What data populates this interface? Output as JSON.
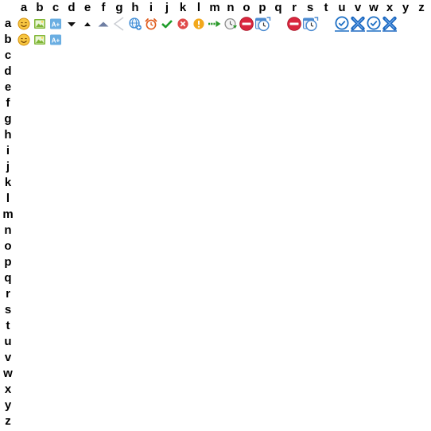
{
  "grid": {
    "column_labels": [
      "a",
      "b",
      "c",
      "d",
      "e",
      "f",
      "g",
      "h",
      "i",
      "j",
      "k",
      "l",
      "m",
      "n",
      "o",
      "p",
      "q",
      "r",
      "s",
      "t",
      "u",
      "v",
      "w",
      "x",
      "y",
      "z"
    ],
    "row_labels": [
      "a",
      "b",
      "c",
      "d",
      "e",
      "f",
      "g",
      "h",
      "i",
      "j",
      "k",
      "l",
      "m",
      "n",
      "o",
      "p",
      "q",
      "r",
      "s",
      "t",
      "u",
      "v",
      "w",
      "x",
      "y",
      "z"
    ]
  },
  "icons": {
    "row_a": [
      {
        "column": "a",
        "name": "smiley-face-icon"
      },
      {
        "column": "b",
        "name": "image-picture-icon"
      },
      {
        "column": "c",
        "name": "font-size-increase-icon",
        "text": "A+"
      },
      {
        "column": "d",
        "name": "caret-down-icon"
      },
      {
        "column": "e",
        "name": "caret-up-small-icon"
      },
      {
        "column": "f",
        "name": "caret-up-icon"
      },
      {
        "column": "g",
        "name": "chevron-left-icon"
      },
      {
        "column": "h",
        "name": "globe-add-icon"
      },
      {
        "column": "i",
        "name": "alarm-clock-icon"
      },
      {
        "column": "j",
        "name": "checkmark-icon"
      },
      {
        "column": "k",
        "name": "error-circle-icon"
      },
      {
        "column": "l",
        "name": "warning-circle-icon"
      },
      {
        "column": "m",
        "name": "arrow-right-dashed-icon"
      },
      {
        "column": "n",
        "name": "clock-arrow-icon"
      },
      {
        "column": "o",
        "name": "stop-sign-icon"
      },
      {
        "column": "p",
        "name": "calendar-clock-icon"
      },
      {
        "column": "r",
        "name": "stop-sign-icon"
      },
      {
        "column": "s",
        "name": "calendar-clock-icon"
      },
      {
        "column": "u",
        "name": "clock-check-icon"
      },
      {
        "column": "v",
        "name": "cross-x-icon"
      },
      {
        "column": "w",
        "name": "clock-check-icon"
      },
      {
        "column": "x",
        "name": "cross-x-icon"
      }
    ],
    "row_b": [
      {
        "column": "a",
        "name": "smiley-face-icon"
      },
      {
        "column": "b",
        "name": "image-picture-icon"
      },
      {
        "column": "c",
        "name": "font-size-increase-icon",
        "text": "A+"
      }
    ]
  },
  "colors": {
    "label_text": "#000000",
    "smiley_fill": "#f7c642",
    "smiley_outline": "#d48f0a",
    "image_frame": "#7fb635",
    "font_icon_fill": "#6aaee2",
    "caret_dark": "#111111",
    "caret_blue": "#6f7fa3",
    "chevron_gray": "#c9ccd2",
    "globe_blue": "#3c8bd6",
    "alarm_red": "#e05a1b",
    "check_green": "#1f9d2b",
    "error_red": "#e04a4a",
    "warning_orange": "#f2a81c",
    "arrow_green": "#2b9a2b",
    "clock_gray": "#8c8c8c",
    "stop_red": "#d9263e",
    "calendar_blue": "#4b8ad0",
    "clock_blue": "#1d6fc4",
    "cross_blue": "#1a67c0"
  }
}
